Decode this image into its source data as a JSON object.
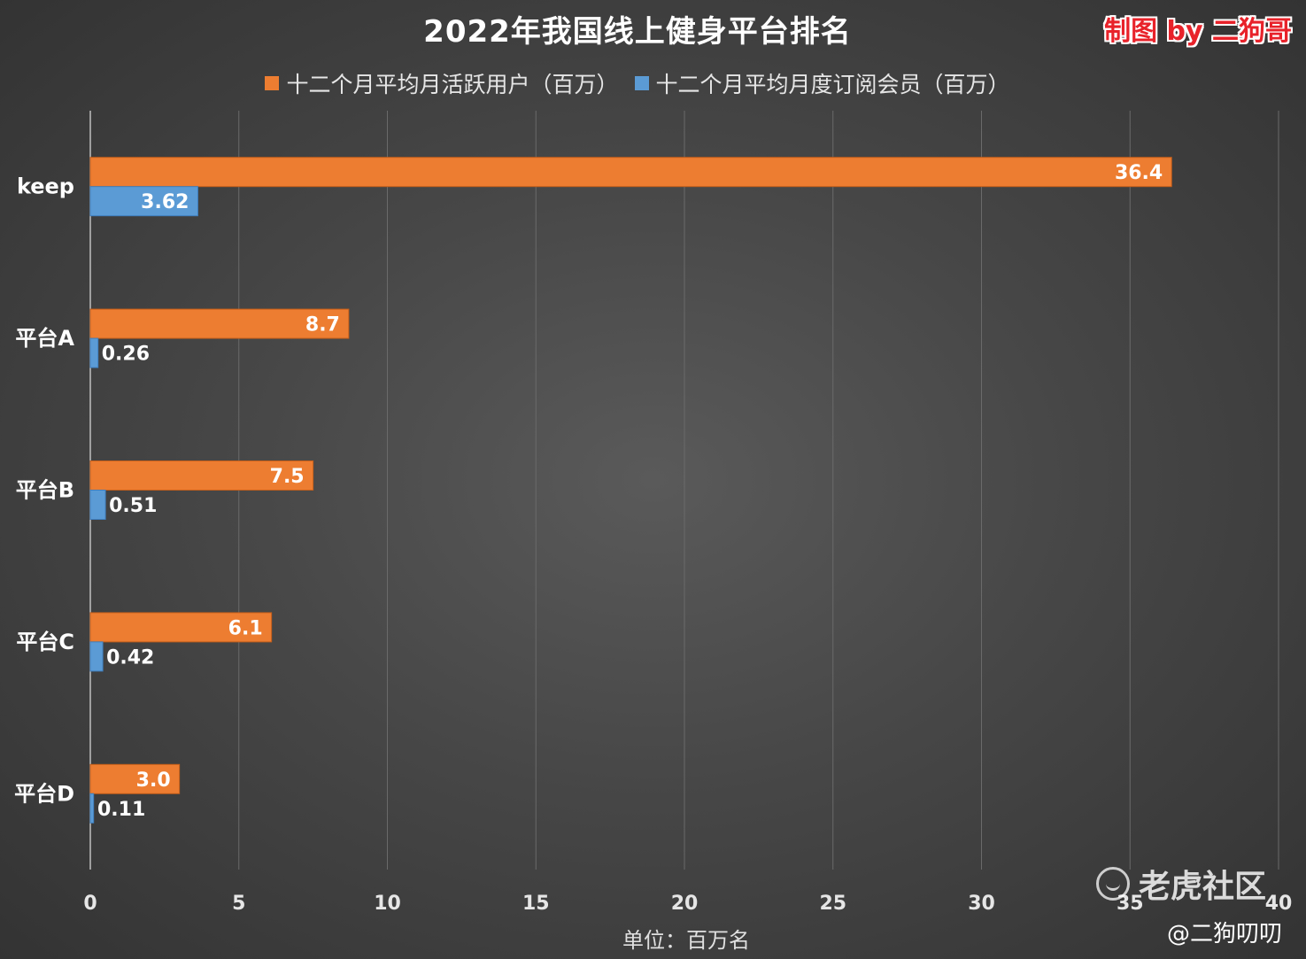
{
  "title": "2022年我国线上健身平台排名",
  "credit": "制图 by 二狗哥",
  "watermark": {
    "brand": "老虎社区",
    "handle": "@二狗叨叨",
    "icon": "tiger-community-logo-icon"
  },
  "colors": {
    "orange": "#ed7d31",
    "blue": "#5b9bd5",
    "credit_red": "#e8222a"
  },
  "chart_data": {
    "type": "bar",
    "orientation": "horizontal",
    "title": "2022年我国线上健身平台排名",
    "categories": [
      "keep",
      "平台A",
      "平台B",
      "平台C",
      "平台D"
    ],
    "series": [
      {
        "name": "十二个月平均月活跃用户（百万）",
        "color": "#ed7d31",
        "values": [
          36.4,
          8.7,
          7.5,
          6.1,
          3.0
        ],
        "labels": [
          "36.4",
          "8.7",
          "7.5",
          "6.1",
          "3.0"
        ]
      },
      {
        "name": "十二个月平均月度订阅会员（百万）",
        "color": "#5b9bd5",
        "values": [
          3.62,
          0.26,
          0.51,
          0.42,
          0.11
        ],
        "labels": [
          "3.62",
          "0.26",
          "0.51",
          "0.42",
          "0.11"
        ]
      }
    ],
    "xlabel": "单位：百万名",
    "ylabel": "",
    "xlim": [
      0,
      40
    ],
    "xticks": [
      0,
      5,
      10,
      15,
      20,
      25,
      30,
      35,
      40
    ],
    "grid": true,
    "legend_position": "top"
  }
}
